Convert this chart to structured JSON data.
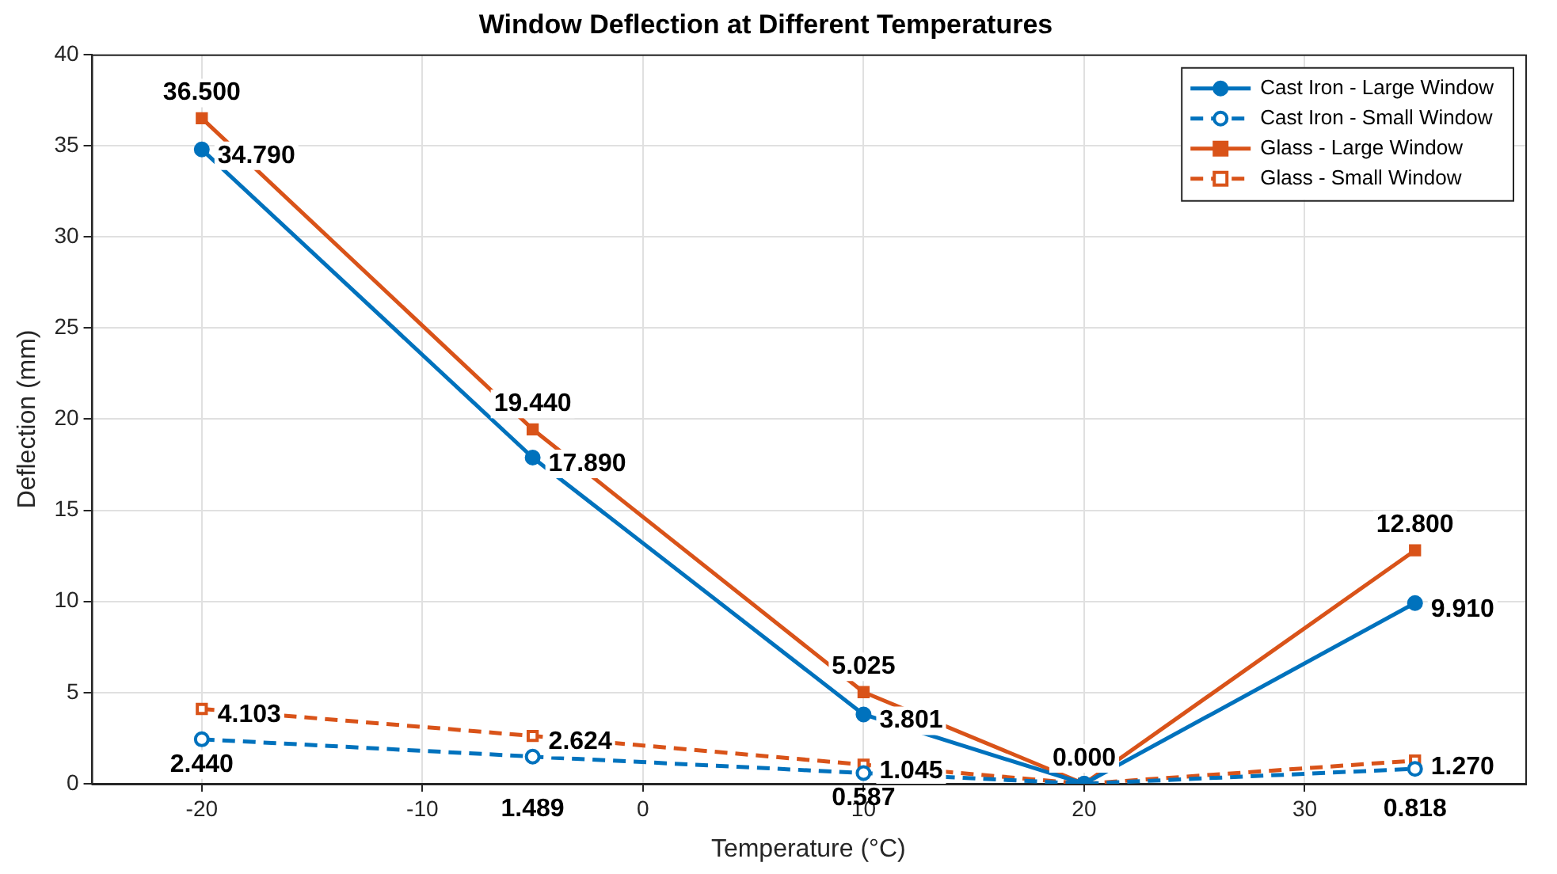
{
  "chart_data": {
    "type": "line",
    "title": "Window Deflection at Different Temperatures",
    "xlabel": "Temperature (°C)",
    "ylabel": "Deflection (mm)",
    "x": [
      -20,
      -5,
      10,
      20,
      35
    ],
    "xlim": [
      -25,
      40
    ],
    "xticks": [
      -20,
      -10,
      0,
      10,
      20,
      30
    ],
    "ylim": [
      0,
      40
    ],
    "yticks": [
      0,
      5,
      10,
      15,
      20,
      25,
      30,
      35,
      40
    ],
    "grid": true,
    "legend": "top right",
    "series": [
      {
        "name": "Cast Iron - Large Window",
        "color": "#0072bd",
        "marker": "circle",
        "line_style": "solid",
        "values": [
          34.79,
          17.89,
          3.801,
          0,
          9.91
        ],
        "value_labels": [
          "34.790",
          "17.890",
          "3.801",
          null,
          "9.910"
        ]
      },
      {
        "name": "Cast Iron - Small Window",
        "color": "#0072bd",
        "marker": "circle",
        "line_style": "dashed",
        "values": [
          2.44,
          1.489,
          0.587,
          0,
          0.818
        ],
        "value_labels": [
          "2.440",
          "1.489",
          "0.587",
          null,
          "0.818"
        ]
      },
      {
        "name": "Glass - Large Window",
        "color": "#d95319",
        "marker": "square",
        "line_style": "solid",
        "values": [
          36.5,
          19.44,
          5.025,
          0,
          12.8
        ],
        "value_labels": [
          "36.500",
          "19.440",
          "5.025",
          "0.000",
          "12.800"
        ]
      },
      {
        "name": "Glass - Small Window",
        "color": "#d95319",
        "marker": "square",
        "line_style": "dashed",
        "values": [
          4.103,
          2.624,
          1.045,
          0,
          1.27
        ],
        "value_labels": [
          "4.103",
          "2.624",
          "1.045",
          null,
          "1.270"
        ]
      }
    ]
  }
}
